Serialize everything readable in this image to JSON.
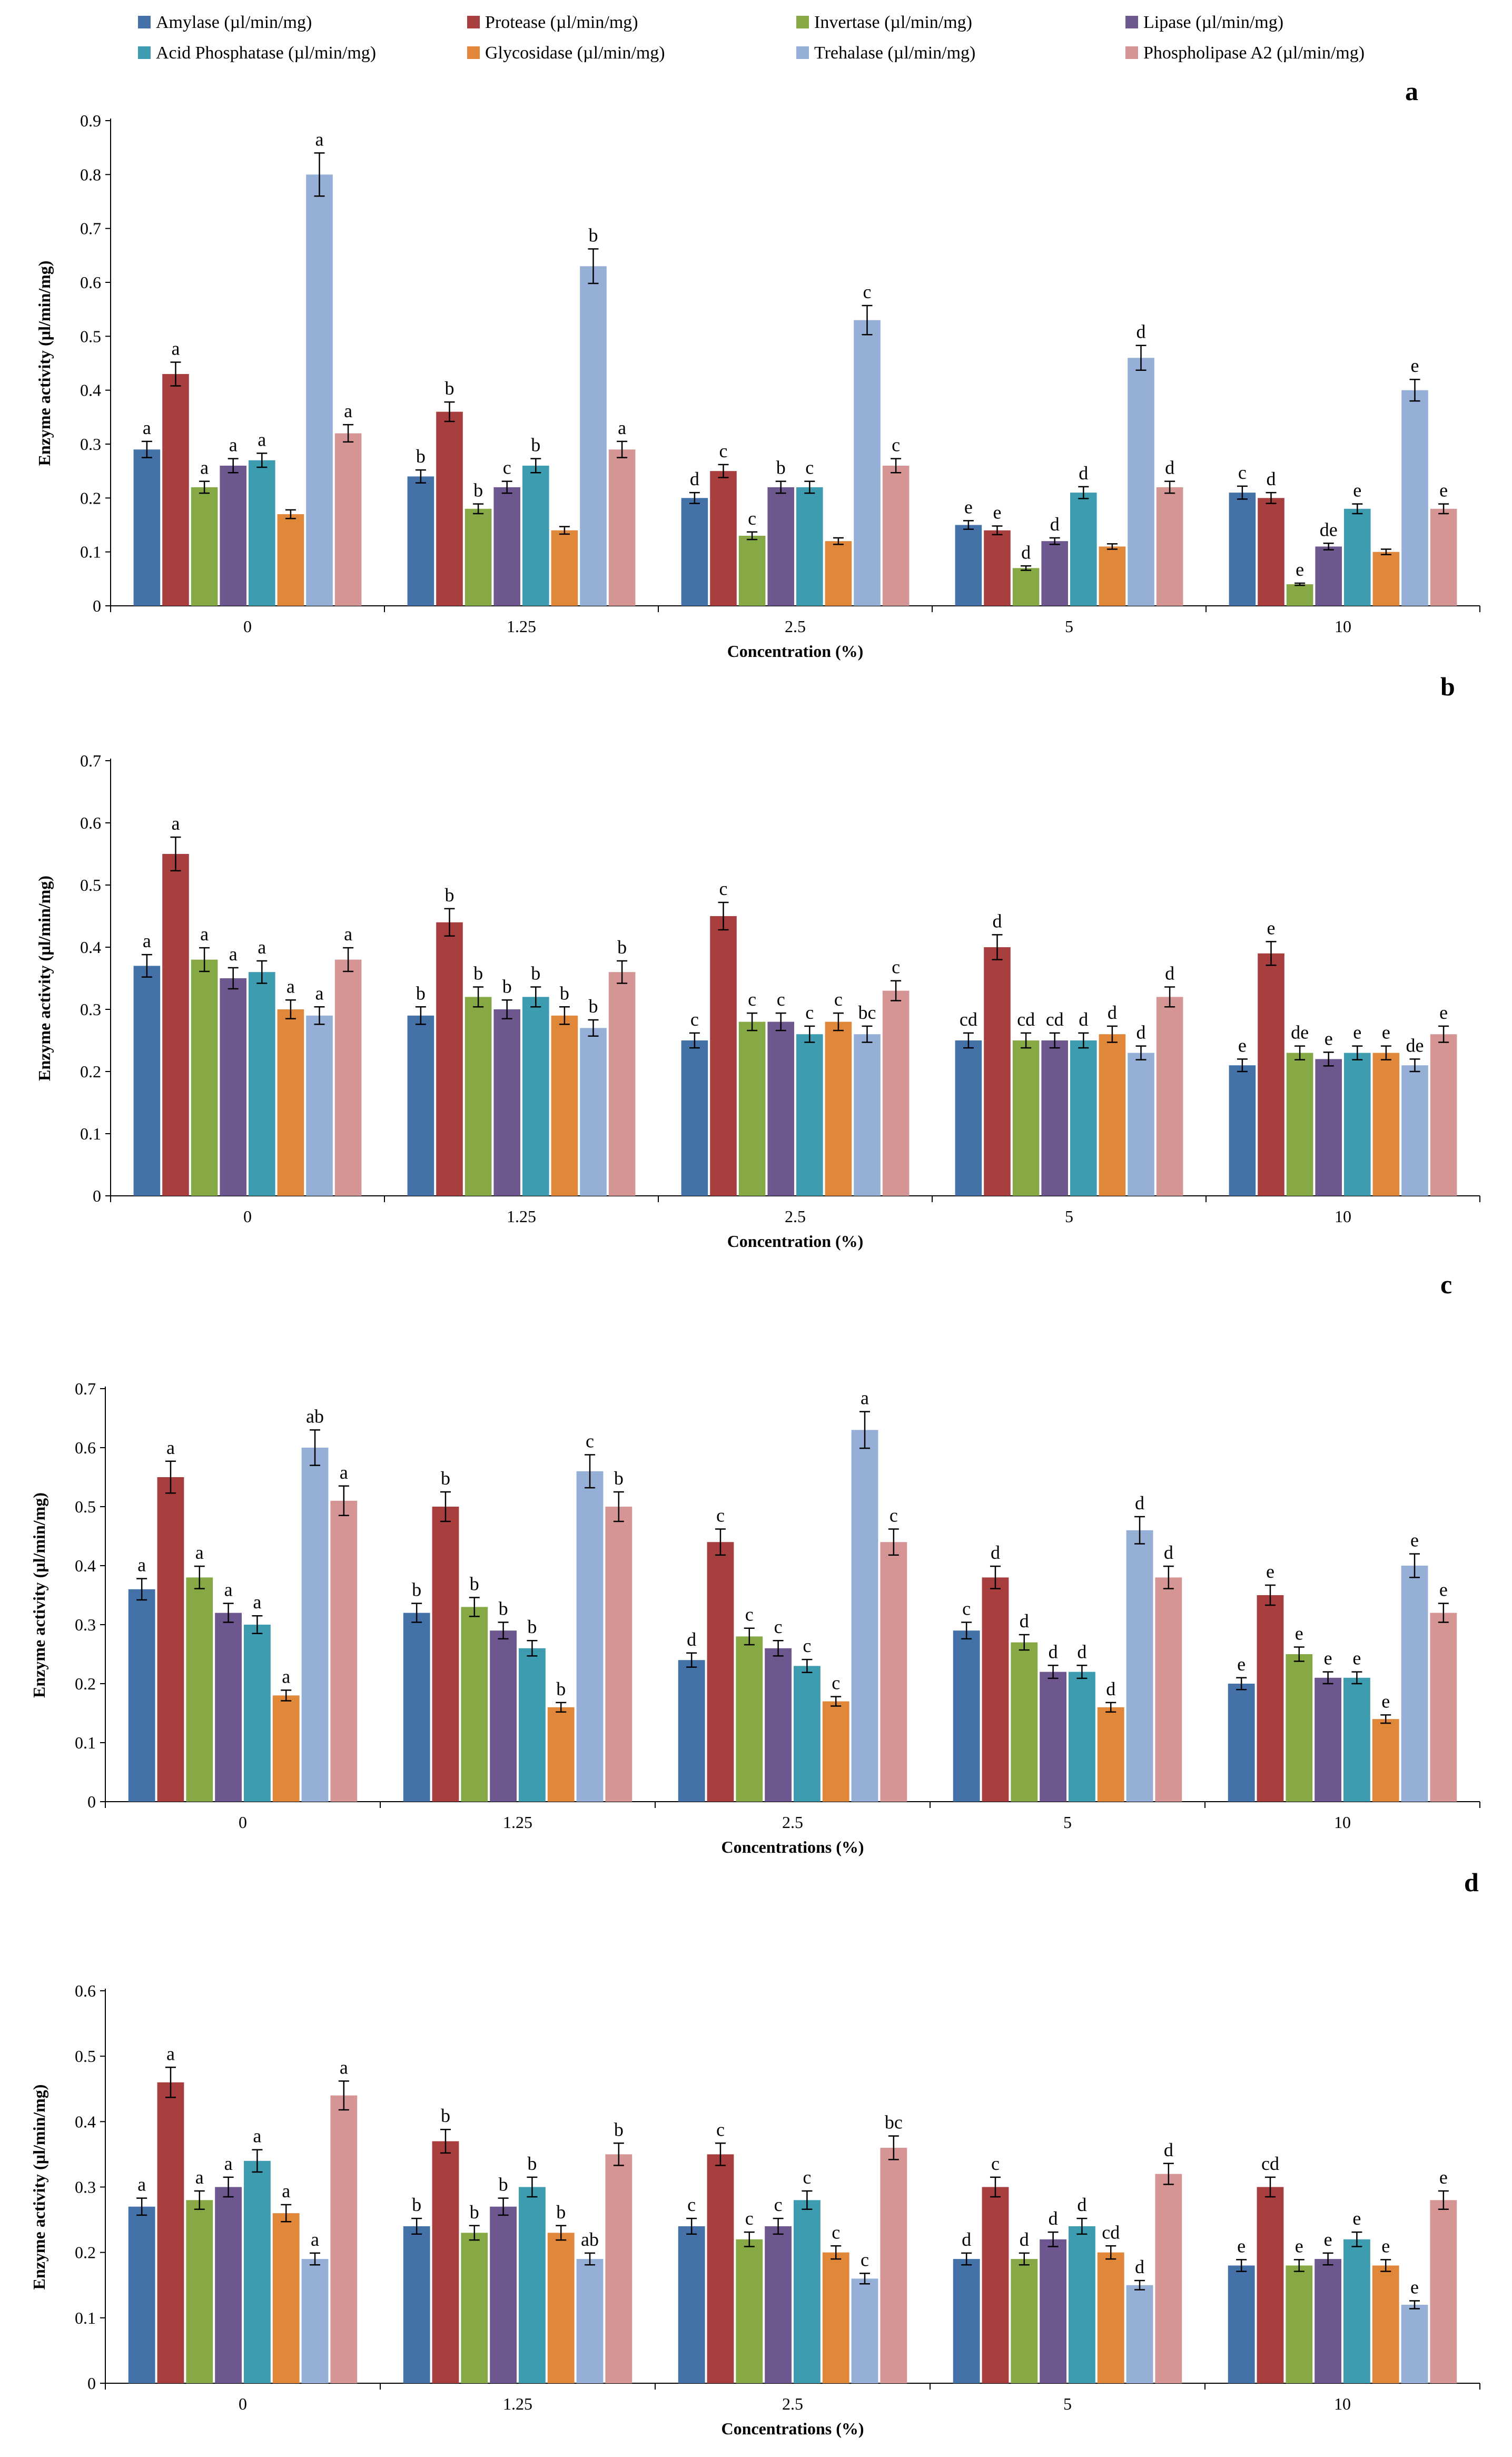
{
  "legend": [
    {
      "name": "Amylase (µl/min/mg)",
      "color": "#4472A8"
    },
    {
      "name": "Protease (µl/min/mg)",
      "color": "#A83E3E"
    },
    {
      "name": "Invertase (µl/min/mg)",
      "color": "#86A845"
    },
    {
      "name": "Lipase (µl/min/mg)",
      "color": "#6E578F"
    },
    {
      "name": "Acid Phosphatase (µl/min/mg)",
      "color": "#3E9CB0"
    },
    {
      "name": "Glycosidase (µl/min/mg)",
      "color": "#E0873A"
    },
    {
      "name": "Trehalase (µl/min/mg)",
      "color": "#96AFD6"
    },
    {
      "name": "Phospholipase A2 (µl/min/mg)",
      "color": "#D69595"
    }
  ],
  "chart_data": [
    {
      "type": "bar",
      "panel": "a",
      "categories": [
        "0",
        "1.25",
        "2.5",
        "5",
        "10"
      ],
      "xlabel": "Concentration (%)",
      "ylabel": "Enzyme activity (µl/min/mg)",
      "ylim": [
        0,
        0.9
      ],
      "yticks": [
        "0",
        "0.1",
        "0.2",
        "0.3",
        "0.4",
        "0.5",
        "0.6",
        "0.7",
        "0.8",
        "0.9"
      ],
      "series": [
        {
          "name": "Amylase (µl/min/mg)",
          "values": [
            0.29,
            0.24,
            0.2,
            0.15,
            0.21
          ],
          "errors": [
            0.015,
            0.012,
            0.01,
            0.008,
            0.012
          ],
          "labels": [
            "a",
            "b",
            "d",
            "e",
            "c"
          ]
        },
        {
          "name": "Protease (µl/min/mg)",
          "values": [
            0.43,
            0.36,
            0.25,
            0.14,
            0.2
          ],
          "errors": [
            0.022,
            0.018,
            0.012,
            0.008,
            0.01
          ],
          "labels": [
            "a",
            "b",
            "c",
            "e",
            "d"
          ]
        },
        {
          "name": "Invertase (µl/min/mg)",
          "values": [
            0.22,
            0.18,
            0.13,
            0.07,
            0.04
          ],
          "errors": [
            0.011,
            0.009,
            0.007,
            0.004,
            0.002
          ],
          "labels": [
            "a",
            "b",
            "c",
            "d",
            "e"
          ]
        },
        {
          "name": "Lipase (µl/min/mg)",
          "values": [
            0.26,
            0.22,
            0.22,
            0.12,
            0.11
          ],
          "errors": [
            0.013,
            0.011,
            0.011,
            0.006,
            0.006
          ],
          "labels": [
            "a",
            "c",
            "b",
            "d",
            "de"
          ]
        },
        {
          "name": "Acid Phosphatase (µl/min/mg)",
          "values": [
            0.27,
            0.26,
            0.22,
            0.21,
            0.18
          ],
          "errors": [
            0.013,
            0.013,
            0.011,
            0.011,
            0.009
          ],
          "labels": [
            "a",
            "b",
            "c",
            "d",
            "e"
          ]
        },
        {
          "name": "Glycosidase (µl/min/mg)",
          "values": [
            0.17,
            0.14,
            0.12,
            0.11,
            0.1
          ],
          "errors": [
            0.008,
            0.007,
            0.006,
            0.005,
            0.005
          ],
          "labels": [
            "",
            "",
            "",
            "",
            ""
          ]
        },
        {
          "name": "Trehalase (µl/min/mg)",
          "values": [
            0.8,
            0.63,
            0.53,
            0.46,
            0.4
          ],
          "errors": [
            0.04,
            0.032,
            0.027,
            0.023,
            0.02
          ],
          "labels": [
            "a",
            "b",
            "c",
            "d",
            "e"
          ]
        },
        {
          "name": "Phospholipase A2 (µl/min/mg)",
          "values": [
            0.32,
            0.29,
            0.26,
            0.22,
            0.18
          ],
          "errors": [
            0.016,
            0.015,
            0.013,
            0.011,
            0.009
          ],
          "labels": [
            "a",
            "a",
            "c",
            "d",
            "e"
          ]
        }
      ]
    },
    {
      "type": "bar",
      "panel": "b",
      "categories": [
        "0",
        "1.25",
        "2.5",
        "5",
        "10"
      ],
      "xlabel": "Concentration (%)",
      "ylabel": "Enzyme activity (µl/min/mg)",
      "ylim": [
        0,
        0.7
      ],
      "yticks": [
        "0",
        "0.1",
        "0.2",
        "0.3",
        "0.4",
        "0.5",
        "0.6",
        "0.7"
      ],
      "series": [
        {
          "name": "Amylase (µl/min/mg)",
          "values": [
            0.37,
            0.29,
            0.25,
            0.25,
            0.21
          ],
          "errors": [
            0.018,
            0.014,
            0.012,
            0.012,
            0.01
          ],
          "labels": [
            "a",
            "b",
            "c",
            "cd",
            "e"
          ]
        },
        {
          "name": "Protease (µl/min/mg)",
          "values": [
            0.55,
            0.44,
            0.45,
            0.4,
            0.39
          ],
          "errors": [
            0.027,
            0.022,
            0.022,
            0.02,
            0.019
          ],
          "labels": [
            "a",
            "b",
            "c",
            "d",
            "e"
          ]
        },
        {
          "name": "Invertase (µl/min/mg)",
          "values": [
            0.38,
            0.32,
            0.28,
            0.25,
            0.23
          ],
          "errors": [
            0.019,
            0.016,
            0.014,
            0.012,
            0.011
          ],
          "labels": [
            "a",
            "b",
            "c",
            "cd",
            "de"
          ]
        },
        {
          "name": "Lipase (µl/min/mg)",
          "values": [
            0.35,
            0.3,
            0.28,
            0.25,
            0.22
          ],
          "errors": [
            0.017,
            0.015,
            0.014,
            0.012,
            0.011
          ],
          "labels": [
            "a",
            "b",
            "c",
            "cd",
            "e"
          ]
        },
        {
          "name": "Acid Phosphatase (µl/min/mg)",
          "values": [
            0.36,
            0.32,
            0.26,
            0.25,
            0.23
          ],
          "errors": [
            0.018,
            0.016,
            0.013,
            0.012,
            0.011
          ],
          "labels": [
            "a",
            "b",
            "c",
            "d",
            "e"
          ]
        },
        {
          "name": "Glycosidase (µl/min/mg)",
          "values": [
            0.3,
            0.29,
            0.28,
            0.26,
            0.23
          ],
          "errors": [
            0.015,
            0.014,
            0.014,
            0.013,
            0.011
          ],
          "labels": [
            "a",
            "b",
            "c",
            "d",
            "e"
          ]
        },
        {
          "name": "Trehalase (µl/min/mg)",
          "values": [
            0.29,
            0.27,
            0.26,
            0.23,
            0.21
          ],
          "errors": [
            0.014,
            0.013,
            0.013,
            0.011,
            0.01
          ],
          "labels": [
            "a",
            "b",
            "bc",
            "d",
            "de"
          ]
        },
        {
          "name": "Phospholipase A2 (µl/min/mg)",
          "values": [
            0.38,
            0.36,
            0.33,
            0.32,
            0.26
          ],
          "errors": [
            0.019,
            0.018,
            0.016,
            0.016,
            0.013
          ],
          "labels": [
            "a",
            "b",
            "c",
            "d",
            "e"
          ]
        }
      ]
    },
    {
      "type": "bar",
      "panel": "c",
      "categories": [
        "0",
        "1.25",
        "2.5",
        "5",
        "10"
      ],
      "xlabel": "Concentrations (%)",
      "ylabel": "Enzyme activity (µl/min/mg)",
      "ylim": [
        0,
        0.7
      ],
      "yticks": [
        "0",
        "0.1",
        "0.2",
        "0.3",
        "0.4",
        "0.5",
        "0.6",
        "0.7"
      ],
      "series": [
        {
          "name": "Amylase (µl/min/mg)",
          "values": [
            0.36,
            0.32,
            0.24,
            0.29,
            0.2
          ],
          "errors": [
            0.018,
            0.016,
            0.012,
            0.014,
            0.01
          ],
          "labels": [
            "a",
            "b",
            "d",
            "c",
            "e"
          ]
        },
        {
          "name": "Protease (µl/min/mg)",
          "values": [
            0.55,
            0.5,
            0.44,
            0.38,
            0.35
          ],
          "errors": [
            0.027,
            0.025,
            0.022,
            0.019,
            0.017
          ],
          "labels": [
            "a",
            "b",
            "c",
            "d",
            "e"
          ]
        },
        {
          "name": "Invertase (µl/min/mg)",
          "values": [
            0.38,
            0.33,
            0.28,
            0.27,
            0.25
          ],
          "errors": [
            0.019,
            0.016,
            0.014,
            0.013,
            0.012
          ],
          "labels": [
            "a",
            "b",
            "c",
            "d",
            "e"
          ]
        },
        {
          "name": "Lipase (µl/min/mg)",
          "values": [
            0.32,
            0.29,
            0.26,
            0.22,
            0.21
          ],
          "errors": [
            0.016,
            0.014,
            0.013,
            0.011,
            0.01
          ],
          "labels": [
            "a",
            "b",
            "c",
            "d",
            "e"
          ]
        },
        {
          "name": "Acid Phosphatase (µl/min/mg)",
          "values": [
            0.3,
            0.26,
            0.23,
            0.22,
            0.21
          ],
          "errors": [
            0.015,
            0.013,
            0.011,
            0.011,
            0.01
          ],
          "labels": [
            "a",
            "b",
            "c",
            "d",
            "e"
          ]
        },
        {
          "name": "Glycosidase (µl/min/mg)",
          "values": [
            0.18,
            0.16,
            0.17,
            0.16,
            0.14
          ],
          "errors": [
            0.009,
            0.008,
            0.008,
            0.008,
            0.007
          ],
          "labels": [
            "a",
            "b",
            "c",
            "d",
            "e"
          ]
        },
        {
          "name": "Trehalase (µl/min/mg)",
          "values": [
            0.6,
            0.56,
            0.63,
            0.46,
            0.4
          ],
          "errors": [
            0.03,
            0.028,
            0.031,
            0.023,
            0.02
          ],
          "labels": [
            "ab",
            "c",
            "a",
            "d",
            "e"
          ]
        },
        {
          "name": "Phospholipase A2 (µl/min/mg)",
          "values": [
            0.51,
            0.5,
            0.44,
            0.38,
            0.32
          ],
          "errors": [
            0.025,
            0.025,
            0.022,
            0.019,
            0.016
          ],
          "labels": [
            "a",
            "b",
            "c",
            "d",
            "e"
          ]
        }
      ]
    },
    {
      "type": "bar",
      "panel": "d",
      "categories": [
        "0",
        "1.25",
        "2.5",
        "5",
        "10"
      ],
      "xlabel": "Concentrations (%)",
      "ylabel": "Enzyme activity (µl/min/mg)",
      "ylim": [
        0,
        0.6
      ],
      "yticks": [
        "0",
        "0.1",
        "0.2",
        "0.3",
        "0.4",
        "0.5",
        "0.6"
      ],
      "series": [
        {
          "name": "Amylase (µl/min/mg)",
          "values": [
            0.27,
            0.24,
            0.24,
            0.19,
            0.18
          ],
          "errors": [
            0.013,
            0.012,
            0.012,
            0.009,
            0.009
          ],
          "labels": [
            "a",
            "b",
            "c",
            "d",
            "e"
          ]
        },
        {
          "name": "Protease (µl/min/mg)",
          "values": [
            0.46,
            0.37,
            0.35,
            0.3,
            0.3
          ],
          "errors": [
            0.023,
            0.018,
            0.017,
            0.015,
            0.015
          ],
          "labels": [
            "a",
            "b",
            "c",
            "c",
            "cd"
          ]
        },
        {
          "name": "Invertase (µl/min/mg)",
          "values": [
            0.28,
            0.23,
            0.22,
            0.19,
            0.18
          ],
          "errors": [
            0.014,
            0.011,
            0.011,
            0.009,
            0.009
          ],
          "labels": [
            "a",
            "b",
            "c",
            "d",
            "e"
          ]
        },
        {
          "name": "Lipase (µl/min/mg)",
          "values": [
            0.3,
            0.27,
            0.24,
            0.22,
            0.19
          ],
          "errors": [
            0.015,
            0.013,
            0.012,
            0.011,
            0.009
          ],
          "labels": [
            "a",
            "b",
            "c",
            "d",
            "e"
          ]
        },
        {
          "name": "Acid Phosphatase (µl/min/mg)",
          "values": [
            0.34,
            0.3,
            0.28,
            0.24,
            0.22
          ],
          "errors": [
            0.017,
            0.015,
            0.014,
            0.012,
            0.011
          ],
          "labels": [
            "a",
            "b",
            "c",
            "d",
            "e"
          ]
        },
        {
          "name": "Glycosidase (µl/min/mg)",
          "values": [
            0.26,
            0.23,
            0.2,
            0.2,
            0.18
          ],
          "errors": [
            0.013,
            0.011,
            0.01,
            0.01,
            0.009
          ],
          "labels": [
            "a",
            "b",
            "c",
            "cd",
            "e"
          ]
        },
        {
          "name": "Trehalase (µl/min/mg)",
          "values": [
            0.19,
            0.19,
            0.16,
            0.15,
            0.12
          ],
          "errors": [
            0.009,
            0.009,
            0.008,
            0.007,
            0.006
          ],
          "labels": [
            "a",
            "ab",
            "c",
            "d",
            "e"
          ]
        },
        {
          "name": "Phospholipase A2 (µl/min/mg)",
          "values": [
            0.44,
            0.35,
            0.36,
            0.32,
            0.28
          ],
          "errors": [
            0.022,
            0.017,
            0.018,
            0.016,
            0.014
          ],
          "labels": [
            "a",
            "b",
            "bc",
            "d",
            "e"
          ]
        }
      ]
    }
  ]
}
